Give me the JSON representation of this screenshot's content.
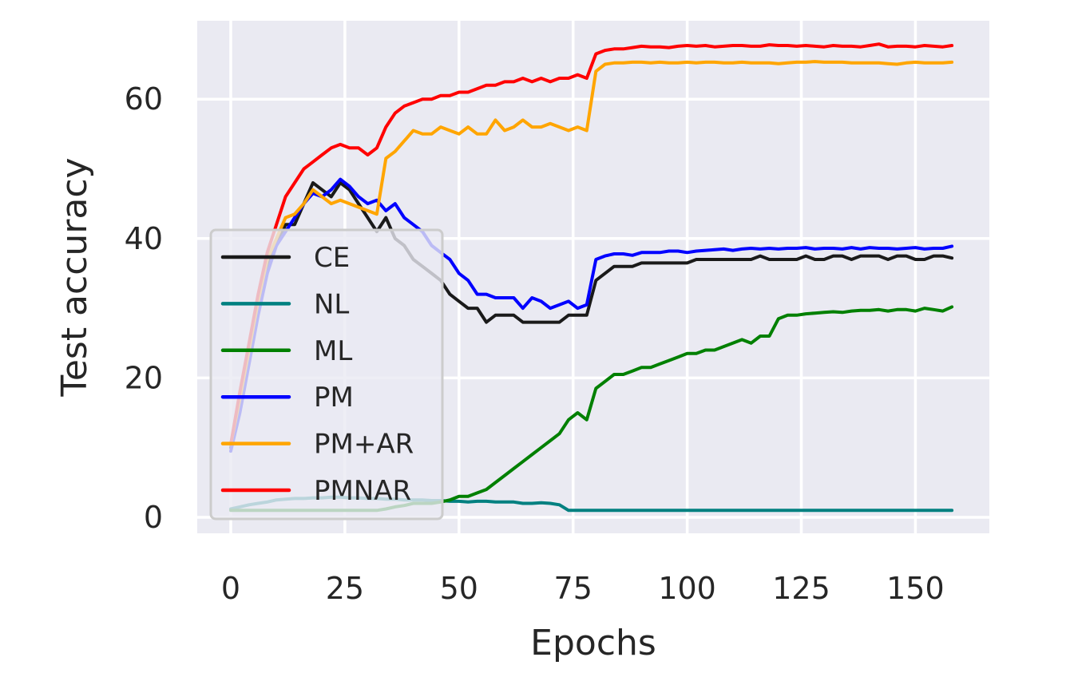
{
  "chart_data": {
    "type": "line",
    "title": "",
    "xlabel": "Epochs",
    "ylabel": "Test accuracy",
    "xlim": [
      -7.5,
      166.5
    ],
    "ylim": [
      -2.3,
      71.8
    ],
    "xticks": [
      0,
      25,
      50,
      75,
      100,
      125,
      150
    ],
    "yticks": [
      0,
      20,
      40,
      60
    ],
    "grid": true,
    "background": "#EAEAF2",
    "legend_position": "lower left",
    "x": [
      0,
      2,
      4,
      6,
      8,
      10,
      12,
      14,
      16,
      18,
      20,
      22,
      24,
      26,
      28,
      30,
      32,
      34,
      36,
      38,
      40,
      42,
      44,
      46,
      48,
      50,
      52,
      54,
      56,
      58,
      60,
      62,
      64,
      66,
      68,
      70,
      72,
      74,
      76,
      78,
      80,
      82,
      84,
      86,
      88,
      90,
      92,
      94,
      96,
      98,
      100,
      102,
      104,
      106,
      108,
      110,
      112,
      114,
      116,
      118,
      120,
      122,
      124,
      126,
      128,
      130,
      132,
      134,
      136,
      138,
      140,
      142,
      144,
      146,
      148,
      150,
      152,
      154,
      156,
      158
    ],
    "series": [
      {
        "name": "CE",
        "color": "#1a1a1a",
        "values": [
          10,
          16,
          23,
          30,
          36,
          39,
          42,
          42,
          45,
          48,
          47,
          46,
          48,
          47,
          45,
          43,
          41,
          43,
          40,
          39,
          37,
          36,
          35,
          34,
          32,
          31,
          30,
          30,
          28,
          29,
          29,
          29,
          28,
          28,
          28,
          28,
          28,
          29,
          29,
          29,
          34,
          35,
          36,
          36,
          36,
          36.5,
          36.5,
          36.5,
          36.5,
          36.5,
          36.5,
          37,
          37,
          37,
          37,
          37,
          37,
          37,
          37.5,
          37,
          37,
          37,
          37,
          37.5,
          37,
          37,
          37.5,
          37.5,
          37,
          37.5,
          37.5,
          37.5,
          37,
          37.5,
          37.5,
          37,
          37,
          37.5,
          37.5,
          37.2
        ]
      },
      {
        "name": "NL",
        "color": "#008080",
        "values": [
          1.2,
          1.5,
          1.8,
          2,
          2.2,
          2.5,
          2.6,
          2.7,
          2.7,
          2.8,
          2.8,
          2.9,
          2.9,
          2.8,
          2.8,
          2.7,
          2.7,
          2.6,
          2.6,
          2.5,
          2.5,
          2.5,
          2.4,
          2.4,
          2.3,
          2.3,
          2.2,
          2.3,
          2.3,
          2.2,
          2.2,
          2.2,
          2.0,
          2.0,
          2.1,
          2.0,
          1.8,
          1.0,
          1.0,
          1.0,
          1.0,
          1.0,
          1.0,
          1.0,
          1.0,
          1.0,
          1.0,
          1.0,
          1.0,
          1.0,
          1.0,
          1.0,
          1.0,
          1.0,
          1.0,
          1.0,
          1.0,
          1.0,
          1.0,
          1.0,
          1.0,
          1.0,
          1.0,
          1.0,
          1.0,
          1.0,
          1.0,
          1.0,
          1.0,
          1.0,
          1.0,
          1.0,
          1.0,
          1.0,
          1.0,
          1.0,
          1.0,
          1.0,
          1.0,
          1.0
        ]
      },
      {
        "name": "ML",
        "color": "#008000",
        "values": [
          1,
          1,
          1,
          1,
          1,
          1,
          1,
          1,
          1,
          1,
          1,
          1,
          1,
          1,
          1,
          1,
          1,
          1.2,
          1.5,
          1.7,
          2,
          2,
          2,
          2.2,
          2.5,
          3,
          3,
          3.5,
          4,
          5,
          6,
          7,
          8,
          9,
          10,
          11,
          12,
          14,
          15,
          14,
          18.5,
          19.5,
          20.5,
          20.5,
          21,
          21.5,
          21.5,
          22,
          22.5,
          23,
          23.5,
          23.5,
          24,
          24,
          24.5,
          25,
          25.5,
          25,
          26,
          26,
          28.5,
          29,
          29,
          29.2,
          29.3,
          29.4,
          29.5,
          29.4,
          29.6,
          29.7,
          29.7,
          29.8,
          29.6,
          29.8,
          29.8,
          29.6,
          30,
          29.8,
          29.6,
          30.2
        ]
      },
      {
        "name": "PM",
        "color": "#0000ff",
        "values": [
          9.5,
          15,
          22,
          29,
          35,
          39,
          41,
          43,
          45,
          46.5,
          46,
          47,
          48.5,
          47.5,
          46,
          45,
          45.5,
          44,
          45,
          43,
          42,
          41,
          39,
          38,
          37,
          35,
          34,
          32,
          32,
          31.5,
          31.5,
          31.5,
          30,
          31.5,
          31,
          30,
          30.5,
          31,
          30,
          30.5,
          37,
          37.5,
          37.8,
          37.8,
          37.6,
          38,
          38,
          38,
          38.2,
          38.2,
          38,
          38.2,
          38.3,
          38.4,
          38.5,
          38.3,
          38.5,
          38.6,
          38.5,
          38.6,
          38.5,
          38.6,
          38.6,
          38.7,
          38.5,
          38.6,
          38.6,
          38.5,
          38.7,
          38.5,
          38.7,
          38.6,
          38.6,
          38.5,
          38.6,
          38.7,
          38.5,
          38.6,
          38.6,
          38.9
        ]
      },
      {
        "name": "PM+AR",
        "color": "#ffa500",
        "values": [
          10.5,
          17,
          24,
          31,
          37,
          40,
          43,
          43.5,
          45,
          47,
          46,
          45,
          45.5,
          45,
          44.5,
          44,
          43.5,
          51.5,
          52.5,
          54,
          55.5,
          55,
          55,
          56,
          55.5,
          55,
          56,
          55,
          55,
          57,
          55.5,
          56,
          57,
          56,
          56,
          56.5,
          56,
          55.5,
          56,
          55.5,
          64,
          65,
          65.2,
          65.2,
          65.3,
          65.3,
          65.2,
          65.3,
          65.2,
          65.2,
          65.3,
          65.2,
          65.3,
          65.3,
          65.2,
          65.2,
          65.3,
          65.2,
          65.2,
          65.2,
          65.1,
          65.2,
          65.3,
          65.3,
          65.4,
          65.3,
          65.3,
          65.3,
          65.2,
          65.2,
          65.2,
          65.2,
          65.1,
          65,
          65.2,
          65.3,
          65.2,
          65.2,
          65.2,
          65.3
        ]
      },
      {
        "name": "PMNAR",
        "color": "#ff0000",
        "values": [
          10.5,
          18,
          25,
          32,
          38,
          42,
          46,
          48,
          50,
          51,
          52,
          53,
          53.5,
          53,
          53,
          52,
          53,
          56,
          58,
          59,
          59.5,
          60,
          60,
          60.5,
          60.5,
          61,
          61,
          61.5,
          62,
          62,
          62.5,
          62.5,
          63,
          62.5,
          63,
          62.5,
          63,
          63,
          63.5,
          63,
          66.5,
          67,
          67.2,
          67.2,
          67.4,
          67.6,
          67.5,
          67.5,
          67.4,
          67.6,
          67.7,
          67.6,
          67.7,
          67.5,
          67.6,
          67.7,
          67.7,
          67.6,
          67.6,
          67.8,
          67.7,
          67.7,
          67.6,
          67.7,
          67.6,
          67.5,
          67.7,
          67.6,
          67.6,
          67.5,
          67.7,
          67.9,
          67.5,
          67.6,
          67.6,
          67.5,
          67.7,
          67.6,
          67.5,
          67.7
        ]
      }
    ]
  }
}
